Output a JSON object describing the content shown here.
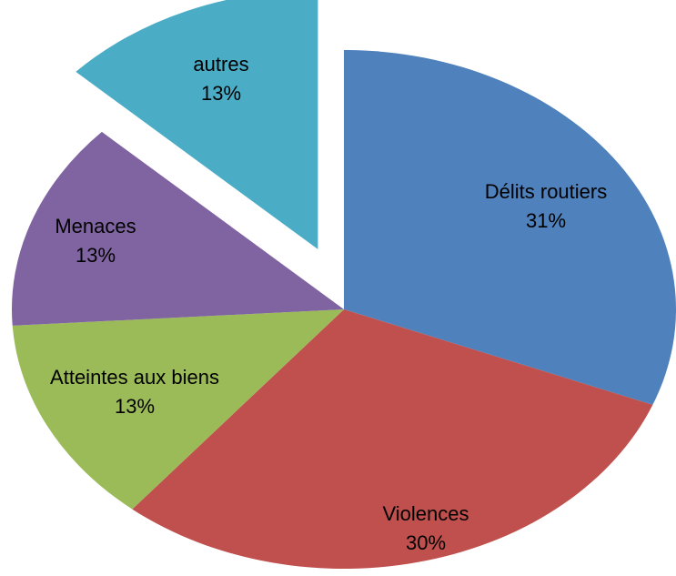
{
  "chart_data": {
    "type": "pie",
    "categories": [
      "Délits routiers",
      "Violences",
      "Atteintes aux biens",
      "Menaces",
      "autres"
    ],
    "values": [
      31,
      30,
      13,
      13,
      13
    ],
    "value_labels": [
      "31%",
      "30%",
      "13%",
      "13%",
      "13%"
    ],
    "colors": [
      "#4f81bd",
      "#c0504d",
      "#9bbb59",
      "#8064a2",
      "#4bacc6"
    ]
  }
}
